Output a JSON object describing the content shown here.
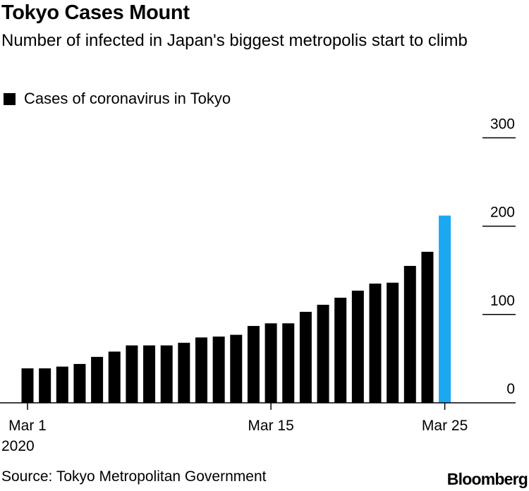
{
  "header": {
    "title": "Tokyo Cases Mount",
    "subtitle": "Number of infected in Japan's biggest metropolis start to climb"
  },
  "legend": {
    "label": "Cases of coronavirus in Tokyo"
  },
  "footer": {
    "source": "Source: Tokyo Metropolitan Government",
    "logo": "Bloomberg"
  },
  "colors": {
    "bar": "#000000",
    "highlight": "#1aa9f1"
  },
  "chart_data": {
    "type": "bar",
    "title": "Tokyo Cases Mount",
    "subtitle": "Number of infected in Japan's biggest metropolis start to climb",
    "series": [
      {
        "name": "Cases of coronavirus in Tokyo",
        "categories": [
          "Mar 1",
          "Mar 2",
          "Mar 3",
          "Mar 4",
          "Mar 5",
          "Mar 6",
          "Mar 7",
          "Mar 8",
          "Mar 9",
          "Mar 10",
          "Mar 11",
          "Mar 12",
          "Mar 13",
          "Mar 14",
          "Mar 15",
          "Mar 16",
          "Mar 17",
          "Mar 18",
          "Mar 19",
          "Mar 20",
          "Mar 21",
          "Mar 22",
          "Mar 23",
          "Mar 24",
          "Mar 25"
        ],
        "values": [
          39,
          39,
          41,
          44,
          52,
          58,
          65,
          65,
          65,
          68,
          74,
          75,
          77,
          87,
          90,
          90,
          103,
          111,
          119,
          127,
          135,
          136,
          155,
          171,
          212
        ],
        "highlight_index": 24
      }
    ],
    "x_ticks": [
      {
        "index": 0,
        "label": "Mar 1",
        "sublabel": "2020"
      },
      {
        "index": 14,
        "label": "Mar 15"
      },
      {
        "index": 24,
        "label": "Mar 25"
      }
    ],
    "y_ticks": [
      0,
      100,
      200,
      300
    ],
    "ylim": [
      0,
      300
    ],
    "xlabel": "",
    "ylabel": "",
    "grid": false,
    "y_axis_side": "right"
  }
}
